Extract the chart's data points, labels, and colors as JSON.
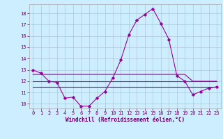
{
  "xlabel": "Windchill (Refroidissement éolien,°C)",
  "x": [
    0,
    1,
    2,
    3,
    4,
    5,
    6,
    7,
    8,
    9,
    10,
    11,
    12,
    13,
    14,
    15,
    16,
    17,
    18,
    19,
    20,
    21,
    22,
    23
  ],
  "y_main": [
    13.0,
    12.7,
    12.0,
    11.9,
    10.5,
    10.6,
    9.8,
    9.8,
    10.5,
    11.1,
    12.3,
    13.9,
    16.1,
    17.4,
    17.9,
    18.4,
    17.1,
    15.7,
    12.5,
    12.0,
    10.8,
    11.1,
    11.4,
    11.5
  ],
  "y_line1": [
    12.6,
    12.6,
    12.6,
    12.6,
    12.6,
    12.6,
    12.6,
    12.6,
    12.6,
    12.6,
    12.6,
    12.6,
    12.6,
    12.6,
    12.6,
    12.6,
    12.6,
    12.6,
    12.6,
    12.6,
    12.0,
    12.0,
    12.0,
    12.0
  ],
  "y_line2": [
    12.0,
    12.0,
    12.0,
    12.0,
    12.0,
    12.0,
    12.0,
    12.0,
    12.0,
    12.0,
    12.0,
    12.0,
    12.0,
    12.0,
    12.0,
    12.0,
    12.0,
    12.0,
    12.0,
    12.0,
    12.0,
    12.0,
    12.0,
    12.0
  ],
  "y_line3": [
    11.5,
    11.5,
    11.5,
    11.5,
    11.5,
    11.5,
    11.5,
    11.5,
    11.5,
    11.5,
    11.5,
    11.5,
    11.5,
    11.5,
    11.5,
    11.5,
    11.5,
    11.5,
    11.5,
    11.5,
    11.5,
    11.5,
    11.5,
    11.5
  ],
  "color_main": "#990099",
  "color_lines": "#990099",
  "bg_color": "#cceeff",
  "grid_color": "#aabbcc",
  "ylim": [
    9.6,
    18.8
  ],
  "yticks": [
    10,
    11,
    12,
    13,
    14,
    15,
    16,
    17,
    18
  ],
  "xticks": [
    0,
    1,
    2,
    3,
    4,
    5,
    6,
    7,
    8,
    9,
    10,
    11,
    12,
    13,
    14,
    15,
    16,
    17,
    18,
    19,
    20,
    21,
    22,
    23
  ],
  "tick_fontsize": 5.0,
  "label_fontsize": 5.5
}
